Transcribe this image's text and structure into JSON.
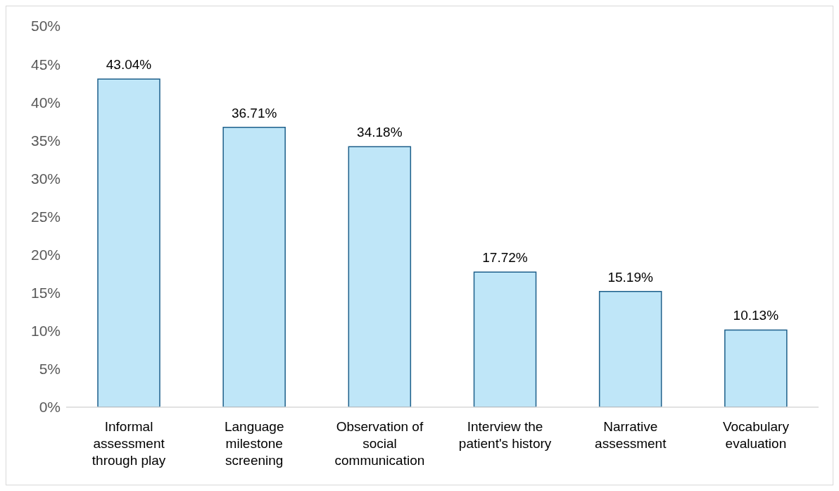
{
  "chart_data": {
    "type": "bar",
    "categories": [
      "Informal assessment through play",
      "Language milestone screening",
      "Observation of social communication",
      "Interview the patient's history",
      "Narrative assessment",
      "Vocabulary evaluation"
    ],
    "values": [
      43.04,
      36.71,
      34.18,
      17.72,
      15.19,
      10.13
    ],
    "value_labels": [
      "43.04%",
      "36.71%",
      "34.18%",
      "17.72%",
      "15.19%",
      "10.13%"
    ],
    "color": "#bfe6f8",
    "ylim": [
      0,
      50
    ],
    "yticks": [
      {
        "value": 0,
        "label": "0%"
      },
      {
        "value": 5,
        "label": "5%"
      },
      {
        "value": 10,
        "label": "10%"
      },
      {
        "value": 15,
        "label": "15%"
      },
      {
        "value": 20,
        "label": "20%"
      },
      {
        "value": 25,
        "label": "25%"
      },
      {
        "value": 30,
        "label": "30%"
      },
      {
        "value": 35,
        "label": "35%"
      },
      {
        "value": 40,
        "label": "40%"
      },
      {
        "value": 45,
        "label": "45%"
      },
      {
        "value": 50,
        "label": "50%"
      }
    ],
    "grid": false,
    "legend": false
  }
}
